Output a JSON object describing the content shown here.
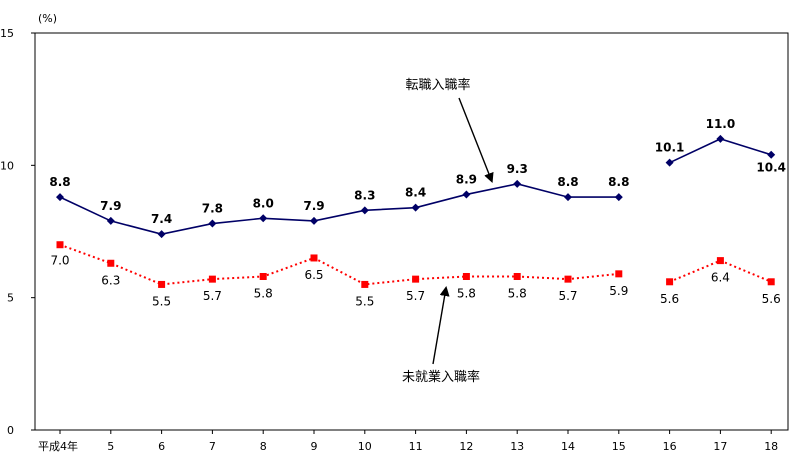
{
  "chart_data": {
    "type": "line",
    "title": "",
    "xlabel": "",
    "ylabel": "",
    "y_unit": "(%)",
    "ylim": [
      0,
      15
    ],
    "yticks": [
      0,
      5,
      10,
      15
    ],
    "grid": false,
    "categories": [
      "平成4年",
      "5",
      "6",
      "7",
      "8",
      "9",
      "10",
      "11",
      "12",
      "13",
      "14",
      "15",
      "16",
      "17",
      "18"
    ],
    "series": [
      {
        "name": "転職入職率",
        "color": "#000066",
        "marker": "diamond",
        "line_style": "solid",
        "values": [
          8.8,
          7.9,
          7.4,
          7.8,
          8.0,
          7.9,
          8.3,
          8.4,
          8.9,
          9.3,
          8.8,
          8.8,
          10.1,
          11.0,
          10.4
        ],
        "labels": [
          "8.8",
          "7.9",
          "7.4",
          "7.8",
          "8.0",
          "7.9",
          "8.3",
          "8.4",
          "8.9",
          "9.3",
          "8.8",
          "8.8",
          "10.1",
          "11.0",
          "10.4"
        ],
        "break_after_index": 11
      },
      {
        "name": "未就業入職率",
        "color": "#ff0000",
        "marker": "square",
        "line_style": "dotted",
        "values": [
          7.0,
          6.3,
          5.5,
          5.7,
          5.8,
          6.5,
          5.5,
          5.7,
          5.8,
          5.8,
          5.7,
          5.9,
          5.6,
          6.4,
          5.6
        ],
        "labels": [
          "7.0",
          "6.3",
          "5.5",
          "5.7",
          "5.8",
          "6.5",
          "5.5",
          "5.7",
          "5.8",
          "5.8",
          "5.7",
          "5.9",
          "5.6",
          "6.4",
          "5.6"
        ],
        "break_after_index": 11
      }
    ],
    "annotations": [
      {
        "text": "転職入職率",
        "series_index": 0,
        "arrow_to_index": 8.5
      },
      {
        "text": "未就業入職率",
        "series_index": 1,
        "arrow_to_index": 7.5
      }
    ]
  }
}
